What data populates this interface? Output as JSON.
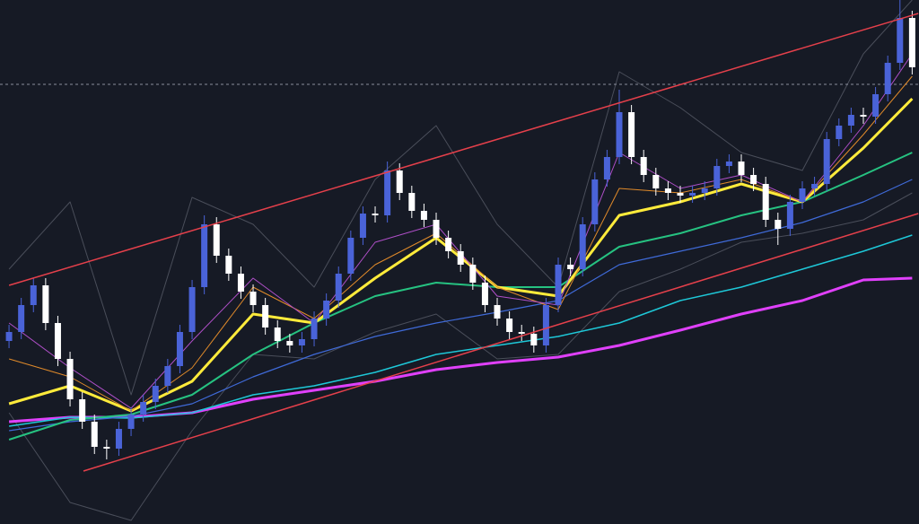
{
  "chart_data": {
    "type": "candlestick",
    "xlim": [
      -0.74,
      74.56
    ],
    "ylim": [
      0,
      584
    ],
    "up_color": "#4a63d8",
    "down_color": "#ffffff",
    "open": [
      204,
      214,
      244,
      266,
      224,
      184,
      139,
      114,
      86,
      84,
      106,
      122,
      136,
      154,
      176,
      214,
      264,
      334,
      299,
      279,
      259,
      244,
      219,
      204,
      199,
      206,
      229,
      249,
      279,
      319,
      346,
      344,
      394,
      369,
      349,
      339,
      319,
      304,
      289,
      269,
      244,
      229,
      214,
      212,
      199,
      244,
      289,
      284,
      334,
      384,
      409,
      459,
      409,
      389,
      374,
      369,
      366,
      369,
      374,
      399,
      404,
      389,
      379,
      339,
      329,
      359,
      374,
      379,
      429,
      444,
      456,
      454,
      479,
      514,
      564
    ],
    "high": [
      222,
      252,
      274,
      274,
      232,
      192,
      147,
      122,
      94,
      114,
      130,
      144,
      162,
      184,
      222,
      272,
      344,
      342,
      307,
      287,
      267,
      252,
      227,
      212,
      214,
      237,
      257,
      287,
      327,
      354,
      354,
      404,
      402,
      377,
      357,
      347,
      327,
      312,
      297,
      277,
      252,
      237,
      222,
      220,
      252,
      297,
      297,
      342,
      392,
      417,
      484,
      467,
      417,
      397,
      382,
      377,
      377,
      382,
      407,
      412,
      412,
      397,
      387,
      347,
      367,
      382,
      387,
      437,
      452,
      464,
      464,
      487,
      522,
      584,
      572
    ],
    "low": [
      196,
      206,
      236,
      216,
      176,
      131,
      106,
      78,
      72,
      76,
      98,
      114,
      128,
      146,
      168,
      206,
      256,
      291,
      271,
      251,
      236,
      211,
      196,
      191,
      191,
      198,
      221,
      241,
      271,
      311,
      336,
      336,
      361,
      341,
      331,
      311,
      296,
      281,
      261,
      236,
      221,
      206,
      204,
      191,
      191,
      236,
      276,
      276,
      326,
      376,
      401,
      401,
      381,
      366,
      361,
      358,
      358,
      361,
      366,
      391,
      381,
      371,
      331,
      311,
      321,
      351,
      366,
      371,
      421,
      436,
      446,
      446,
      471,
      506,
      501
    ],
    "close": [
      214,
      244,
      266,
      224,
      184,
      139,
      114,
      86,
      84,
      106,
      122,
      136,
      154,
      176,
      214,
      264,
      334,
      299,
      279,
      259,
      244,
      219,
      204,
      199,
      206,
      229,
      249,
      279,
      319,
      346,
      344,
      394,
      369,
      349,
      339,
      319,
      304,
      289,
      269,
      244,
      229,
      214,
      212,
      199,
      244,
      289,
      284,
      334,
      384,
      409,
      459,
      409,
      389,
      374,
      369,
      366,
      369,
      374,
      399,
      404,
      389,
      379,
      339,
      329,
      359,
      374,
      379,
      429,
      444,
      456,
      454,
      479,
      514,
      564,
      509
    ],
    "price_line": {
      "value": 490,
      "color": "#8a8f9c"
    },
    "bands": [
      {
        "color": "#4a4e5a",
        "x": [
          0,
          5,
          10,
          15,
          20,
          25,
          30,
          35,
          40,
          45,
          50,
          55,
          60,
          65,
          70,
          74
        ],
        "values": [
          284,
          359,
          144,
          364,
          334,
          264,
          384,
          444,
          334,
          264,
          504,
          464,
          414,
          394,
          524,
          584
        ]
      },
      {
        "color": "#4a4e5a",
        "x": [
          0,
          5,
          10,
          15,
          20,
          25,
          30,
          35,
          40,
          45,
          50,
          55,
          60,
          65,
          70,
          74
        ],
        "values": [
          124,
          24,
          4,
          104,
          189,
          184,
          214,
          234,
          184,
          189,
          259,
          284,
          314,
          324,
          339,
          369
        ]
      }
    ],
    "series": [
      {
        "color": "#e040fb",
        "width": 3,
        "x": [
          0,
          5,
          10,
          15,
          20,
          25,
          30,
          35,
          40,
          45,
          50,
          55,
          60,
          65,
          70,
          74
        ],
        "values": [
          114,
          119,
          119,
          124,
          139,
          149,
          159,
          172,
          180,
          186,
          199,
          216,
          234,
          249,
          272,
          274
        ]
      },
      {
        "color": "#1ec8d8",
        "width": 1.5,
        "x": [
          0,
          5,
          10,
          15,
          20,
          25,
          30,
          35,
          40,
          45,
          50,
          55,
          60,
          65,
          70,
          74
        ],
        "values": [
          109,
          119,
          118,
          124,
          144,
          154,
          169,
          189,
          199,
          209,
          224,
          249,
          264,
          284,
          304,
          322
        ]
      },
      {
        "color": "#3f6ad8",
        "width": 1.2,
        "x": [
          0,
          5,
          10,
          15,
          20,
          25,
          30,
          35,
          40,
          45,
          50,
          55,
          60,
          65,
          70,
          74
        ],
        "values": [
          104,
          114,
          120,
          134,
          164,
          189,
          209,
          224,
          236,
          249,
          289,
          304,
          319,
          336,
          359,
          384
        ]
      },
      {
        "color": "#26c281",
        "width": 2,
        "x": [
          0,
          5,
          10,
          15,
          20,
          25,
          30,
          35,
          40,
          45,
          50,
          55,
          60,
          65,
          70,
          74
        ],
        "values": [
          94,
          116,
          122,
          144,
          189,
          224,
          254,
          269,
          264,
          264,
          309,
          324,
          344,
          359,
          389,
          414
        ]
      },
      {
        "color": "#ffeb3b",
        "width": 3,
        "x": [
          0,
          5,
          10,
          15,
          20,
          25,
          30,
          35,
          40,
          45,
          50,
          55,
          60,
          65,
          70,
          74
        ],
        "values": [
          134,
          154,
          126,
          159,
          234,
          224,
          274,
          319,
          264,
          254,
          344,
          359,
          379,
          359,
          419,
          474
        ]
      },
      {
        "color": "#e08a2a",
        "width": 1,
        "x": [
          0,
          5,
          10,
          15,
          20,
          25,
          30,
          35,
          40,
          45,
          50,
          55,
          60,
          65,
          70,
          74
        ],
        "values": [
          184,
          164,
          126,
          174,
          264,
          229,
          289,
          324,
          264,
          239,
          374,
          369,
          384,
          359,
          434,
          499
        ]
      },
      {
        "color": "#b04fc9",
        "width": 1,
        "x": [
          0,
          5,
          10,
          15,
          20,
          25,
          30,
          35,
          40,
          45,
          50,
          55,
          60,
          65,
          70,
          74
        ],
        "values": [
          224,
          174,
          129,
          204,
          274,
          224,
          314,
          334,
          254,
          244,
          414,
          374,
          389,
          359,
          444,
          524
        ]
      }
    ],
    "trendlines": [
      {
        "color": "#e5404b",
        "x": [
          0,
          74.5
        ],
        "values": [
          266,
          569
        ]
      },
      {
        "color": "#e5404b",
        "x": [
          6.1,
          74.5
        ],
        "values": [
          59,
          346
        ]
      }
    ]
  }
}
